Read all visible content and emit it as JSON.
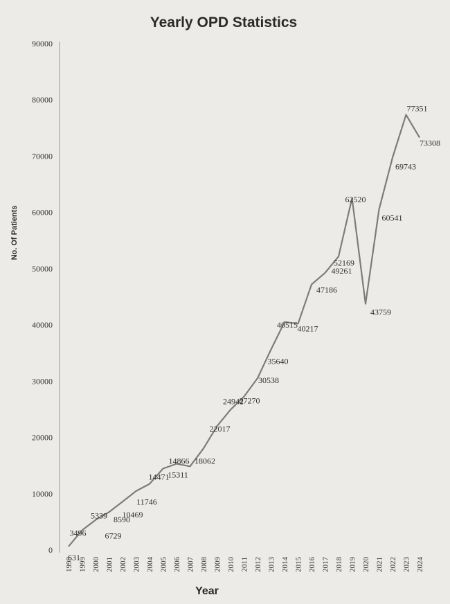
{
  "chart_data": {
    "type": "line",
    "title": "Yearly OPD Statistics",
    "xlabel": "Year",
    "ylabel": "No. Of Patients",
    "ylim": [
      0,
      90000
    ],
    "yticks": [
      "0",
      "10000",
      "20000",
      "30000",
      "40000",
      "50000",
      "60000",
      "70000",
      "80000",
      "90000"
    ],
    "grid": false,
    "categories": [
      "1998",
      "1999",
      "2000",
      "2001",
      "2002",
      "2003",
      "2004",
      "2005",
      "2006",
      "2007",
      "2008",
      "2009",
      "2010",
      "2011",
      "2012",
      "2013",
      "2014",
      "2015",
      "2016",
      "2017",
      "2018",
      "2019",
      "2020",
      "2021",
      "2022",
      "2023",
      "2024"
    ],
    "values": [
      631,
      3496,
      5339,
      6729,
      8590,
      10469,
      11746,
      14471,
      15311,
      14866,
      18062,
      22017,
      24942,
      27270,
      30538,
      35640,
      40515,
      40217,
      47186,
      49261,
      52169,
      62520,
      43759,
      60541,
      69743,
      77351,
      73308
    ],
    "colors": {
      "line": "#7c7c7c",
      "background": "#ecebe7"
    }
  }
}
